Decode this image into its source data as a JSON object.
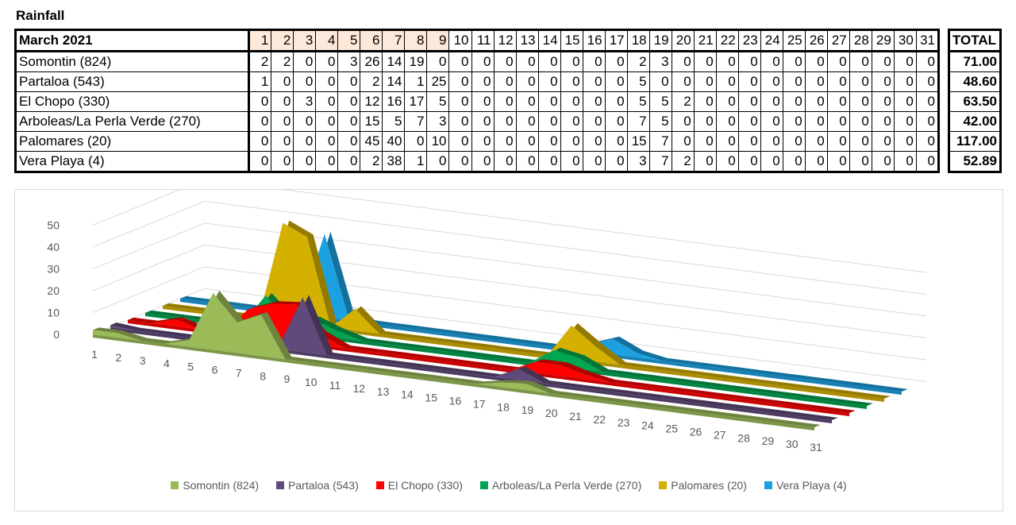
{
  "title": "Rainfall",
  "table": {
    "month_label": "March 2021",
    "days": [
      "1",
      "2",
      "3",
      "4",
      "5",
      "6",
      "7",
      "8",
      "9",
      "10",
      "11",
      "12",
      "13",
      "14",
      "15",
      "16",
      "17",
      "18",
      "19",
      "20",
      "21",
      "22",
      "23",
      "24",
      "25",
      "26",
      "27",
      "28",
      "29",
      "30",
      "31"
    ],
    "highlighted_days": [
      "1",
      "2",
      "3",
      "4",
      "5",
      "6",
      "7",
      "8",
      "9"
    ],
    "total_label": "TOTAL",
    "rows": [
      {
        "station": "Somontin (824)",
        "values": [
          "2",
          "2",
          "0",
          "0",
          "3",
          "26",
          "14",
          "19",
          "0",
          "0",
          "0",
          "0",
          "0",
          "0",
          "0",
          "0",
          "0",
          "2",
          "3",
          "0",
          "0",
          "0",
          "0",
          "0",
          "0",
          "0",
          "0",
          "0",
          "0",
          "0",
          "0"
        ],
        "total": "71.00"
      },
      {
        "station": "Partaloa (543)",
        "values": [
          "1",
          "0",
          "0",
          "0",
          "0",
          "2",
          "14",
          "1",
          "25",
          "0",
          "0",
          "0",
          "0",
          "0",
          "0",
          "0",
          "0",
          "5",
          "0",
          "0",
          "0",
          "0",
          "0",
          "0",
          "0",
          "0",
          "0",
          "0",
          "0",
          "0",
          "0"
        ],
        "total": "48.60"
      },
      {
        "station": "El Chopo (330)",
        "values": [
          "0",
          "0",
          "3",
          "0",
          "0",
          "12",
          "16",
          "17",
          "5",
          "0",
          "0",
          "0",
          "0",
          "0",
          "0",
          "0",
          "0",
          "5",
          "5",
          "2",
          "0",
          "0",
          "0",
          "0",
          "0",
          "0",
          "0",
          "0",
          "0",
          "0",
          "0"
        ],
        "total": "63.50"
      },
      {
        "station": "Arboleas/La Perla Verde (270)",
        "values": [
          "0",
          "0",
          "0",
          "0",
          "0",
          "15",
          "5",
          "7",
          "3",
          "0",
          "0",
          "0",
          "0",
          "0",
          "0",
          "0",
          "0",
          "7",
          "5",
          "0",
          "0",
          "0",
          "0",
          "0",
          "0",
          "0",
          "0",
          "0",
          "0",
          "0",
          "0"
        ],
        "total": "42.00"
      },
      {
        "station": "Palomares (20)",
        "values": [
          "0",
          "0",
          "0",
          "0",
          "0",
          "45",
          "40",
          "0",
          "10",
          "0",
          "0",
          "0",
          "0",
          "0",
          "0",
          "0",
          "0",
          "15",
          "7",
          "0",
          "0",
          "0",
          "0",
          "0",
          "0",
          "0",
          "0",
          "0",
          "0",
          "0",
          "0"
        ],
        "total": "117.00"
      },
      {
        "station": "Vera Playa (4)",
        "values": [
          "0",
          "0",
          "0",
          "0",
          "0",
          "2",
          "38",
          "1",
          "0",
          "0",
          "0",
          "0",
          "0",
          "0",
          "0",
          "0",
          "0",
          "3",
          "7",
          "2",
          "0",
          "0",
          "0",
          "0",
          "0",
          "0",
          "0",
          "0",
          "0",
          "0",
          "0"
        ],
        "total": "52.89"
      }
    ]
  },
  "chart_data": {
    "type": "area",
    "title": "",
    "xlabel": "",
    "ylabel": "",
    "ylim": [
      0,
      50
    ],
    "yticks": [
      "0",
      "10",
      "20",
      "30",
      "40",
      "50"
    ],
    "categories": [
      "1",
      "2",
      "3",
      "4",
      "5",
      "6",
      "7",
      "8",
      "9",
      "10",
      "11",
      "12",
      "13",
      "14",
      "15",
      "16",
      "17",
      "18",
      "19",
      "20",
      "21",
      "22",
      "23",
      "24",
      "25",
      "26",
      "27",
      "28",
      "29",
      "30",
      "31"
    ],
    "legend_position": "bottom",
    "series": [
      {
        "name": "Somontin (824)",
        "color": "#9bbb59",
        "values": [
          2,
          2,
          0,
          0,
          3,
          26,
          14,
          19,
          0,
          0,
          0,
          0,
          0,
          0,
          0,
          0,
          0,
          2,
          3,
          0,
          0,
          0,
          0,
          0,
          0,
          0,
          0,
          0,
          0,
          0,
          0
        ]
      },
      {
        "name": "Partaloa (543)",
        "color": "#604a7b",
        "values": [
          1,
          0,
          0,
          0,
          0,
          2,
          14,
          1,
          25,
          0,
          0,
          0,
          0,
          0,
          0,
          0,
          0,
          5,
          0,
          0,
          0,
          0,
          0,
          0,
          0,
          0,
          0,
          0,
          0,
          0,
          0
        ]
      },
      {
        "name": "El Chopo (330)",
        "color": "#ff0000",
        "values": [
          0,
          0,
          3,
          0,
          0,
          12,
          16,
          17,
          5,
          0,
          0,
          0,
          0,
          0,
          0,
          0,
          0,
          5,
          5,
          2,
          0,
          0,
          0,
          0,
          0,
          0,
          0,
          0,
          0,
          0,
          0
        ]
      },
      {
        "name": "Arboleas/La Perla Verde (270)",
        "color": "#00a651",
        "values": [
          0,
          0,
          0,
          0,
          0,
          15,
          5,
          7,
          3,
          0,
          0,
          0,
          0,
          0,
          0,
          0,
          0,
          7,
          5,
          0,
          0,
          0,
          0,
          0,
          0,
          0,
          0,
          0,
          0,
          0,
          0
        ]
      },
      {
        "name": "Palomares (20)",
        "color": "#d4b000",
        "values": [
          0,
          0,
          0,
          0,
          0,
          45,
          40,
          0,
          10,
          0,
          0,
          0,
          0,
          0,
          0,
          0,
          0,
          15,
          7,
          0,
          0,
          0,
          0,
          0,
          0,
          0,
          0,
          0,
          0,
          0,
          0
        ]
      },
      {
        "name": "Vera Playa (4)",
        "color": "#1ba1e2",
        "values": [
          0,
          0,
          0,
          0,
          0,
          2,
          38,
          1,
          0,
          0,
          0,
          0,
          0,
          0,
          0,
          0,
          0,
          3,
          7,
          2,
          0,
          0,
          0,
          0,
          0,
          0,
          0,
          0,
          0,
          0,
          0
        ]
      }
    ]
  }
}
